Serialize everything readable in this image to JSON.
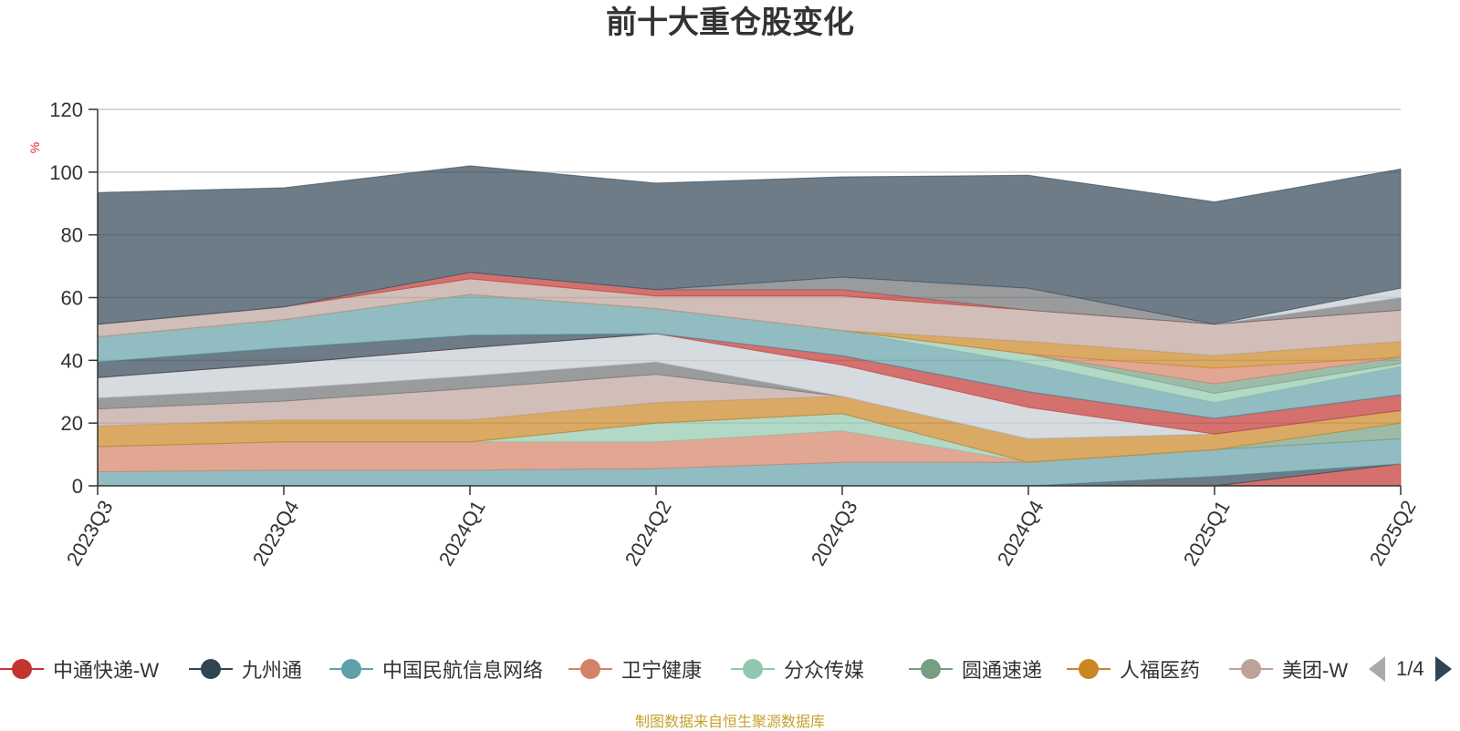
{
  "chart_data": {
    "type": "area",
    "stacked": true,
    "title": "前十大重仓股变化",
    "ylabel": "%",
    "ylim": [
      0,
      120
    ],
    "yticks": [
      0,
      20,
      40,
      60,
      80,
      100,
      120
    ],
    "grid": true,
    "categories": [
      "2023Q3",
      "2023Q4",
      "2024Q1",
      "2024Q2",
      "2024Q3",
      "2024Q4",
      "2025Q1",
      "2025Q2"
    ],
    "series": [
      {
        "name": "中通快递-W",
        "color": "#c23531",
        "values": [
          0,
          0,
          0,
          0,
          0,
          0,
          0,
          7
        ]
      },
      {
        "name": "九州通",
        "color": "#2f4554",
        "values": [
          0,
          0,
          0,
          0,
          0,
          0,
          3,
          0
        ]
      },
      {
        "name": "中国民航信息网络",
        "color": "#61a0a8",
        "values": [
          4.5,
          5,
          5,
          5.5,
          7.5,
          7.5,
          8.5,
          8
        ]
      },
      {
        "name": "卫宁健康",
        "color": "#d48265",
        "values": [
          8,
          9,
          9,
          8.5,
          10,
          0,
          0,
          0
        ]
      },
      {
        "name": "分众传媒",
        "color": "#91c7ae",
        "values": [
          0,
          0,
          0,
          6,
          5.5,
          0,
          0,
          0
        ]
      },
      {
        "name": "圆通速递",
        "color": "#749f83",
        "values": [
          0,
          0,
          0,
          0,
          0,
          0,
          0,
          5
        ]
      },
      {
        "name": "人福医药",
        "color": "#ca8622",
        "values": [
          6.5,
          7,
          7,
          6.5,
          5.5,
          7.5,
          5,
          4
        ]
      },
      {
        "name": "美团-W",
        "color": "#bda29a",
        "values": [
          5.5,
          6,
          10,
          9,
          0,
          0,
          0,
          0
        ]
      },
      {
        "name": "",
        "color": "#6e7074",
        "values": [
          3.5,
          4,
          4,
          4,
          0,
          0,
          0,
          0
        ]
      },
      {
        "name": "",
        "color": "#c4ccd3",
        "values": [
          6.5,
          8,
          9,
          9,
          10,
          10,
          0,
          0
        ]
      },
      {
        "name": "",
        "color": "#c23531",
        "values": [
          0,
          0,
          0,
          0,
          3,
          5,
          5,
          5
        ]
      },
      {
        "name": "",
        "color": "#2f4554",
        "values": [
          5,
          5,
          4,
          0,
          0,
          0,
          0,
          0
        ]
      },
      {
        "name": "",
        "color": "#61a0a8",
        "values": [
          8,
          9,
          13,
          8,
          8,
          9,
          5,
          9
        ]
      },
      {
        "name": "",
        "color": "#91c7ae",
        "values": [
          0,
          0,
          0,
          0,
          0,
          3,
          3,
          1
        ]
      },
      {
        "name": "",
        "color": "#749f83",
        "values": [
          0,
          0,
          0,
          0,
          0,
          0,
          3,
          2
        ]
      },
      {
        "name": "",
        "color": "#d48265",
        "values": [
          0,
          0,
          0,
          0,
          0,
          0,
          5,
          0
        ]
      },
      {
        "name": "",
        "color": "#ca8622",
        "values": [
          0,
          0,
          0,
          0,
          0,
          4,
          4,
          5
        ]
      },
      {
        "name": "",
        "color": "#bda29a",
        "values": [
          4,
          4,
          5,
          4,
          11,
          10,
          10,
          10
        ]
      },
      {
        "name": "",
        "color": "#c23531",
        "values": [
          0,
          0,
          2,
          2,
          2,
          0,
          0,
          0
        ]
      },
      {
        "name": "",
        "color": "#6e7074",
        "values": [
          0,
          0,
          0,
          0,
          4,
          7,
          0,
          4
        ]
      },
      {
        "name": "",
        "color": "#c4ccd3",
        "values": [
          0,
          0,
          0,
          0,
          0,
          0,
          0,
          3
        ]
      },
      {
        "name": "",
        "color": "#2f4554",
        "values": [
          42,
          38,
          34,
          34,
          32,
          36,
          39,
          38
        ]
      }
    ]
  },
  "legend": {
    "items": [
      {
        "label": "中通快递-W",
        "color": "#c23531"
      },
      {
        "label": "九州通",
        "color": "#2f4554"
      },
      {
        "label": "中国民航信息网络",
        "color": "#61a0a8"
      },
      {
        "label": "卫宁健康",
        "color": "#d48265"
      },
      {
        "label": "分众传媒",
        "color": "#91c7ae"
      },
      {
        "label": "圆通速递",
        "color": "#749f83"
      },
      {
        "label": "人福医药",
        "color": "#ca8622"
      },
      {
        "label": "美团-W",
        "color": "#bda29a"
      }
    ],
    "page_label": "1/4"
  },
  "footer": {
    "source_note": "制图数据来自恒生聚源数据库"
  }
}
